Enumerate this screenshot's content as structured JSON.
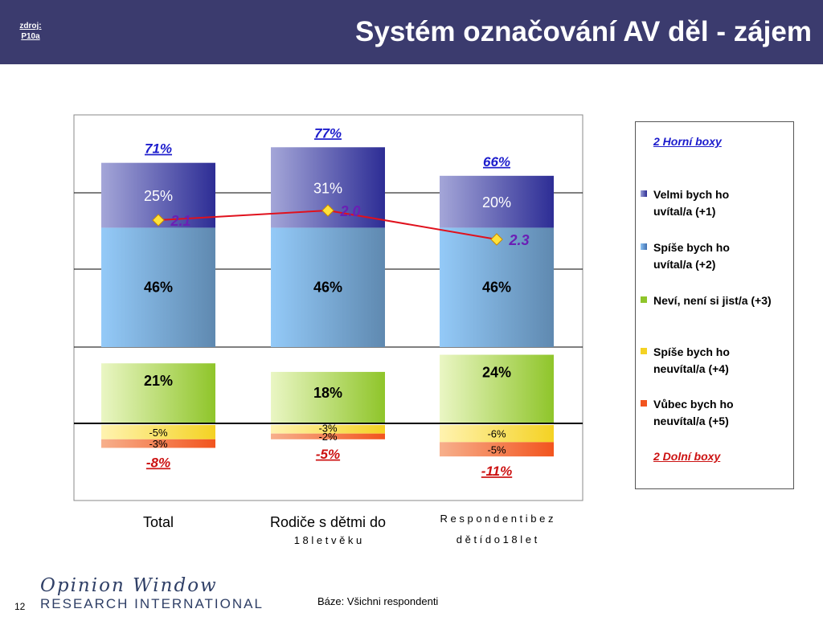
{
  "header": {
    "source_label": "zdroj:\nP10a",
    "title": "Systém označování AV děl - zájem"
  },
  "colors": {
    "header_bg": "#3b3b6e",
    "top_box": "#2d2d95",
    "positive_1": "#2d2d95",
    "positive_2": "#5f89b0",
    "neutral": "#8fc52a",
    "negative_4": "#f4d223",
    "negative_5": "#f2541e",
    "mean_line": "#e0111d",
    "link_blue": "#1c1ccc",
    "link_red": "#cc1111"
  },
  "chart_data": {
    "type": "bar",
    "stacked": true,
    "categories": [
      "Total",
      "Rodiče s dětmi do 18 let věku",
      "Respondenti bez dětí do 18 let"
    ],
    "category_labels": [
      [
        "Total"
      ],
      [
        "Rodiče s dětmi do",
        "1 8  l e t  v ě k u"
      ],
      [
        "R e s p o n d e n t i  b e z",
        "d ě t í  d o  1 8  l e t"
      ]
    ],
    "series": [
      {
        "name": "Velmi  bych ho uvítal/a (+1)",
        "values": [
          25,
          31,
          20
        ],
        "labels": [
          "25%",
          "31%",
          "20%"
        ]
      },
      {
        "name": "Spíše  bych ho uvítal/a (+2)",
        "values": [
          46,
          46,
          46
        ],
        "labels": [
          "46%",
          "46%",
          "46%"
        ]
      },
      {
        "name": "Neví, není si jist/a (+3)",
        "values": [
          21,
          18,
          24
        ],
        "labels": [
          "21%",
          "18%",
          "24%"
        ]
      },
      {
        "name": "Spíše bych ho neuvítal/a (+4)",
        "values": [
          -5,
          -3,
          -6
        ],
        "labels": [
          "-5%",
          "-3%",
          "-6%"
        ]
      },
      {
        "name": "Vůbec bych ho neuvítal/a (+5)",
        "values": [
          -3,
          -2,
          -5
        ],
        "labels": [
          "-3%",
          "-2%",
          "-5%"
        ]
      }
    ],
    "top_box_totals": [
      "71%",
      "77%",
      "66%"
    ],
    "bottom_box_totals": [
      "-8%",
      "-5%",
      "-11%"
    ],
    "mean": {
      "values": [
        2.1,
        2.0,
        2.3
      ],
      "labels": [
        "2.1",
        "2.0",
        "2.3"
      ]
    },
    "legend": {
      "top_label": "2 Horní boxy",
      "bottom_label": "2 Dolní boxy",
      "position": "right"
    }
  },
  "footer": {
    "logo_script": "Opinion Window",
    "logo_main": "RESEARCH INTERNATIONAL",
    "page_number": "12",
    "base_note": "Báze: Všichni respondenti"
  }
}
